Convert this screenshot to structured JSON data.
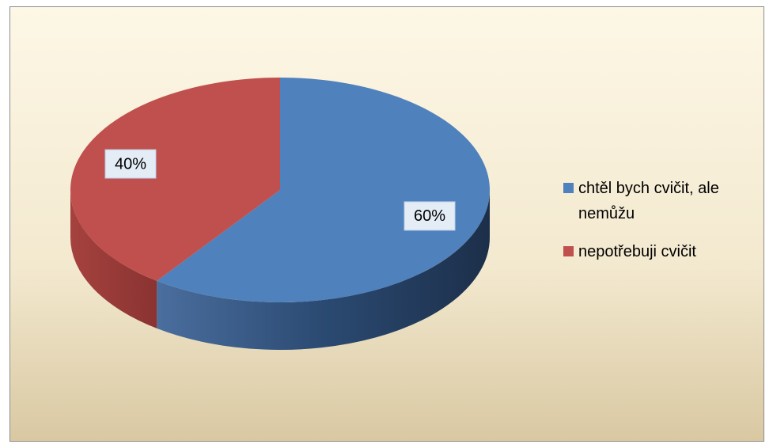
{
  "chart_data": {
    "type": "pie",
    "categories": [
      "chtěl bych cvičit, ale nemůžu",
      "nepotřebuji cvičit"
    ],
    "values": [
      60,
      40
    ],
    "value_labels": [
      "60%",
      "40%"
    ],
    "colors": [
      "#4f81bd",
      "#c0504d"
    ],
    "legend": "right"
  }
}
